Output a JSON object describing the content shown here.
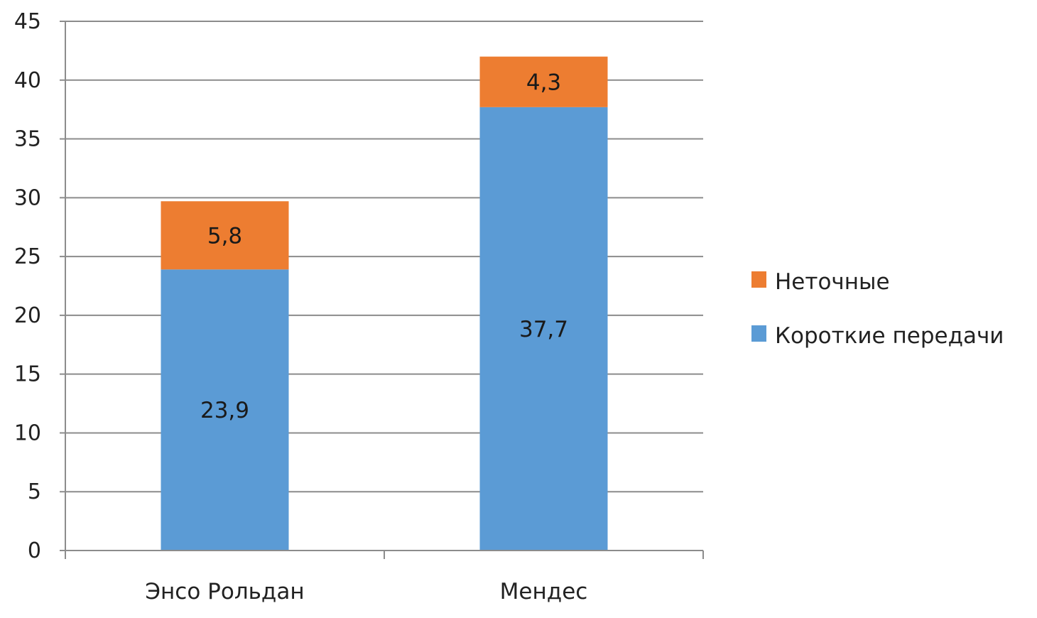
{
  "chart_data": {
    "type": "bar",
    "stacked": true,
    "categories": [
      "Энсо Рольдан",
      "Мендес"
    ],
    "series": [
      {
        "name": "Короткие передачи",
        "values": [
          23.9,
          37.7
        ],
        "labels": [
          "23,9",
          "37,7"
        ],
        "color": "#5b9bd5"
      },
      {
        "name": "Неточные",
        "values": [
          5.8,
          4.3
        ],
        "labels": [
          "5,8",
          "4,3"
        ],
        "color": "#ed7d31"
      }
    ],
    "yticks": [
      "0",
      "5",
      "10",
      "15",
      "20",
      "25",
      "30",
      "35",
      "40",
      "45"
    ],
    "ylim": [
      0,
      45
    ],
    "grid": true,
    "legend_position": "right",
    "legend_order": [
      1,
      0
    ]
  }
}
